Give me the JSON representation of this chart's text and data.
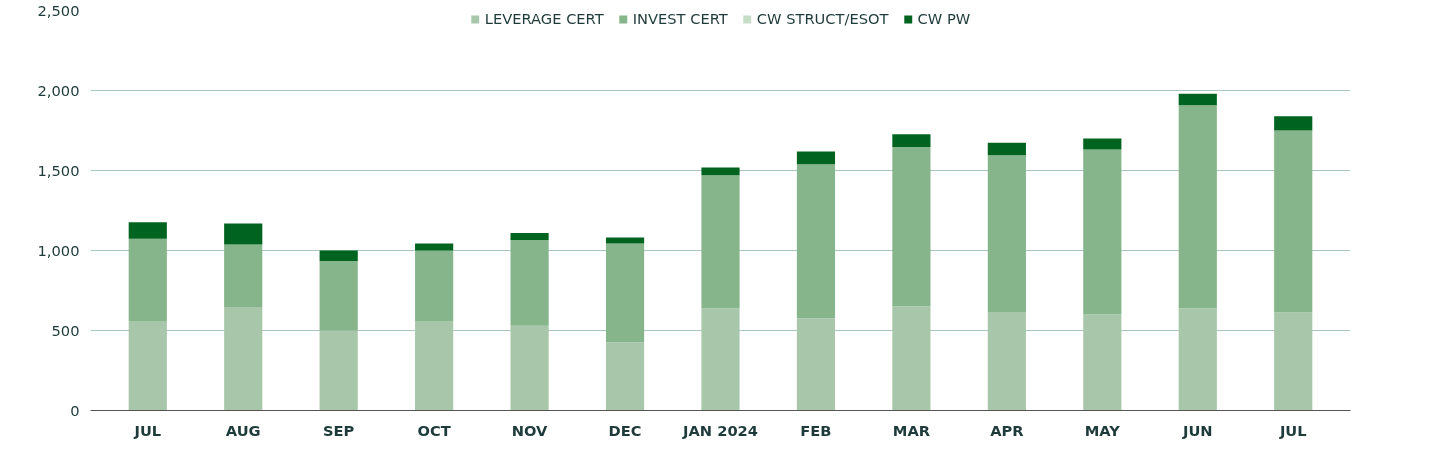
{
  "chart_data": {
    "type": "bar",
    "stacked": true,
    "categories": [
      "JUL",
      "AUG",
      "SEP",
      "OCT",
      "NOV",
      "DEC",
      "JAN 2024",
      "FEB",
      "MAR",
      "APR",
      "MAY",
      "JUN",
      "JUL"
    ],
    "series": [
      {
        "name": "LEVERAGE CERT",
        "color": "#a8c7aa",
        "values": [
          559,
          647,
          500,
          559,
          529,
          426,
          639,
          577,
          652,
          616,
          600,
          639,
          613
        ]
      },
      {
        "name": "INVEST CERT",
        "color": "#86b58b",
        "values": [
          515,
          390,
          434,
          441,
          537,
          618,
          831,
          962,
          995,
          979,
          1031,
          1269,
          1137
        ]
      },
      {
        "name": "CW STRUCT/ESOT",
        "color": "#c5dcc7",
        "values": [
          0,
          0,
          0,
          0,
          0,
          0,
          0,
          0,
          0,
          0,
          0,
          0,
          0
        ]
      },
      {
        "name": "CW PW",
        "color": "#006420",
        "values": [
          102,
          132,
          66,
          44,
          44,
          37,
          49,
          79,
          80,
          79,
          69,
          72,
          89
        ]
      }
    ],
    "ylim": [
      0,
      2500
    ],
    "yticks": [
      {
        "value": 0,
        "label": "0"
      },
      {
        "value": 500,
        "label": "500"
      },
      {
        "value": 1000,
        "label": "1,000"
      },
      {
        "value": 1500,
        "label": "1,500"
      },
      {
        "value": 2000,
        "label": "2,000"
      },
      {
        "value": 2500,
        "label": "2,500"
      }
    ],
    "grid": "y",
    "legend": "top"
  }
}
